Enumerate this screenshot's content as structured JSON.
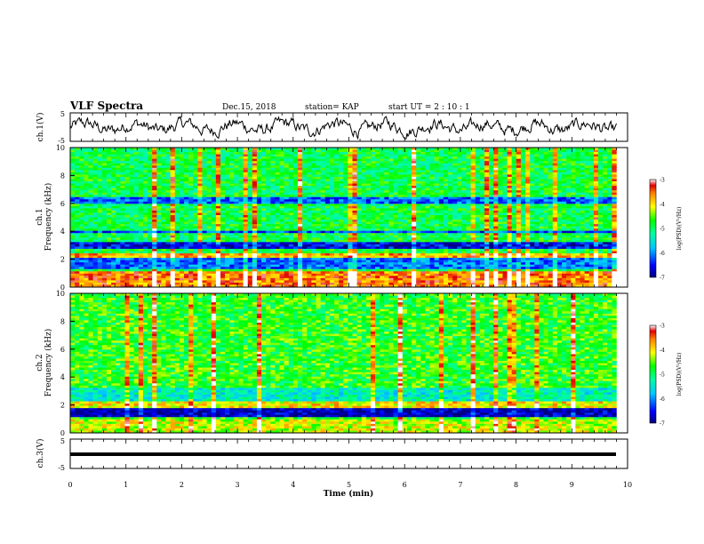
{
  "header": {
    "title": "VLF Spectra",
    "date": "Dec.15, 2018",
    "station": "station= KAP",
    "start": "start UT =  2 : 10 : 1"
  },
  "chart_data": [
    {
      "type": "line",
      "panel": "ch1-waveform",
      "ylabel": "ch.1(V)",
      "ylim": [
        -5,
        5
      ],
      "yticks": [
        "5",
        "-5"
      ],
      "x_range": [
        0,
        10
      ],
      "color": "#000000",
      "description": "noisy waveform oscillating roughly between -3 and 3 V"
    },
    {
      "type": "heatmap",
      "panel": "ch1-spectrogram",
      "ylabel": "ch.1\nFrequency (kHz)",
      "ylim": [
        0,
        10
      ],
      "yticks": [
        "0",
        "2",
        "4",
        "6",
        "8",
        "10"
      ],
      "x_range": [
        0,
        9.8
      ],
      "colorbar": {
        "label": "log(PSD)(V²/Hz)",
        "range": [
          -7,
          -3
        ],
        "ticks": [
          "-3",
          "-4",
          "-5",
          "-6",
          "-7"
        ]
      },
      "bands_khz": [
        {
          "lo": 0.0,
          "hi": 1.2,
          "level": -3.6
        },
        {
          "lo": 1.3,
          "hi": 2.1,
          "level": -6.1
        },
        {
          "lo": 2.1,
          "hi": 2.4,
          "level": -3.8
        },
        {
          "lo": 2.8,
          "hi": 3.3,
          "level": -6.6
        },
        {
          "lo": 3.9,
          "hi": 4.1,
          "level": -6.3
        },
        {
          "lo": 5.9,
          "hi": 6.4,
          "level": -6.2
        }
      ],
      "background_level": -4.9
    },
    {
      "type": "heatmap",
      "panel": "ch2-spectrogram",
      "ylabel": "ch.2\nFrequency (kHz)",
      "ylim": [
        0,
        10
      ],
      "yticks": [
        "0",
        "2",
        "4",
        "6",
        "8",
        "10"
      ],
      "x_range": [
        0,
        9.8
      ],
      "colorbar": {
        "label": "log(PSD)(V²/Hz)",
        "range": [
          -7,
          -3
        ],
        "ticks": [
          "-3",
          "-4",
          "-5",
          "-6",
          "-7"
        ]
      },
      "bands_khz": [
        {
          "lo": 0.0,
          "hi": 1.0,
          "level": -4.2
        },
        {
          "lo": 1.1,
          "hi": 1.8,
          "level": -6.8
        },
        {
          "lo": 1.8,
          "hi": 2.2,
          "level": -4.0
        },
        {
          "lo": 2.2,
          "hi": 3.2,
          "level": -5.4
        }
      ],
      "background_level": -4.7
    },
    {
      "type": "line",
      "panel": "ch3-waveform",
      "ylabel": "ch.3(V)",
      "ylim": [
        -5,
        5
      ],
      "yticks": [
        "5",
        "-5"
      ],
      "x_range": [
        0,
        9.8
      ],
      "constant_value": 0,
      "color": "#000000"
    }
  ],
  "x_axis": {
    "label": "Time (min)",
    "ticks": [
      "0",
      "1",
      "2",
      "3",
      "4",
      "5",
      "6",
      "7",
      "8",
      "9",
      "10"
    ]
  }
}
